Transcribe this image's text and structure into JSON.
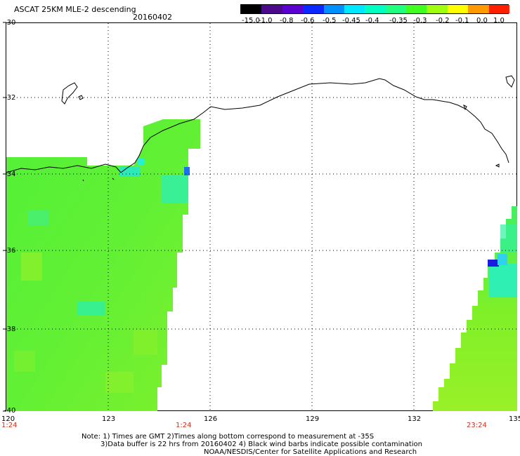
{
  "header": {
    "title": "ASCAT 25KM MLE-2 descending",
    "date": "20160402"
  },
  "colorbar": {
    "labels": [
      "-15.0",
      "-1.0",
      "-0.8",
      "-0.6",
      "-0.5",
      "-0.45",
      "-0.4",
      "-0.35",
      "-0.3",
      "-0.2",
      "-0.1",
      "0.0",
      "1.0"
    ],
    "colors": [
      "#000000",
      "#4a0a8a",
      "#5a00d0",
      "#0a28ff",
      "#0090ff",
      "#00e8ff",
      "#00ffc0",
      "#20ff80",
      "#40ff20",
      "#a0ff10",
      "#ffff00",
      "#ff9a00",
      "#ff2000"
    ]
  },
  "axes": {
    "lat_labels": [
      "-30",
      "-32",
      "-34",
      "-36",
      "-38",
      "-40"
    ],
    "lon_labels": [
      "120",
      "123",
      "126",
      "129",
      "132",
      "135"
    ]
  },
  "times": {
    "left": "1:24",
    "mid": "1:24",
    "right": "23:24"
  },
  "notes": {
    "line1": "Note: 1) Times are GMT 2)Times along bottom correspond to measurement at -35S",
    "line2": "3)Data buffer is 22 hrs from 20160402 4) Black wind barbs indicate possible contamination",
    "line3": "NOAA/NESDIS/Center for Satellite Applications and Research"
  },
  "colors": {
    "green_main": "#58f032",
    "yellow_green": "#96f02a",
    "cyan": "#1ef0c0",
    "blue": "#1a1ae0",
    "coast": "#000000"
  }
}
